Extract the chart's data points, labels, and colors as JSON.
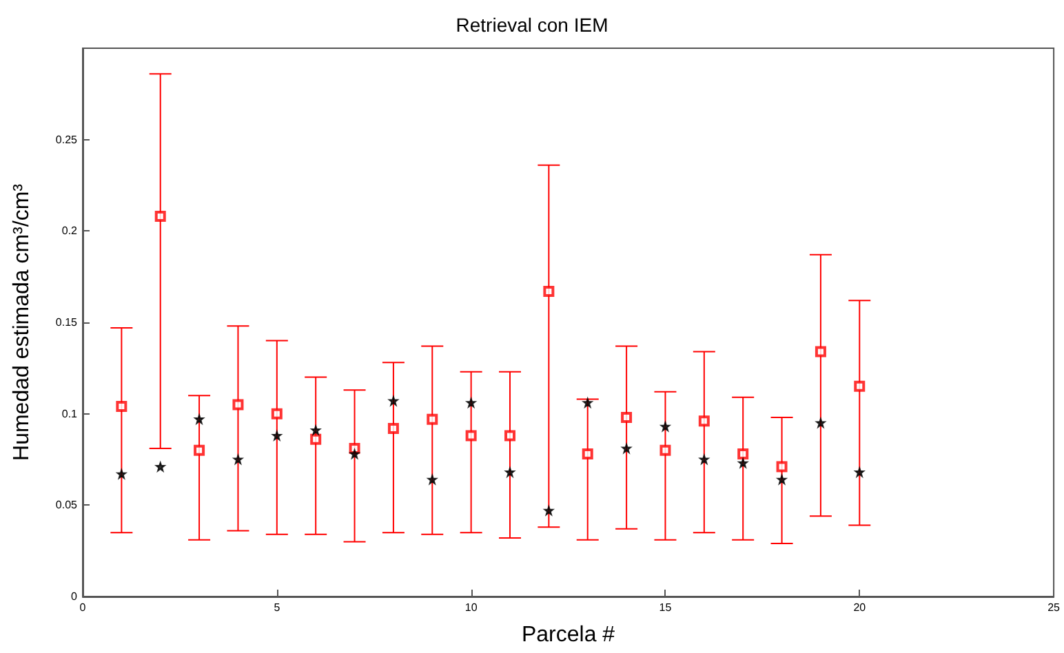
{
  "chart_data": {
    "type": "scatter",
    "title": "Retrieval con IEM",
    "xlabel": "Parcela #",
    "ylabel": "Humedad estimada cm³/cm³",
    "x": [
      1,
      2,
      3,
      4,
      5,
      6,
      7,
      8,
      9,
      10,
      11,
      12,
      13,
      14,
      15,
      16,
      17,
      18,
      19,
      20
    ],
    "series": [
      {
        "color": "#ff0000",
        "marker": "square",
        "values": [
          0.104,
          0.208,
          0.08,
          0.105,
          0.1,
          0.086,
          0.081,
          0.092,
          0.097,
          0.088,
          0.088,
          0.167,
          0.078,
          0.098,
          0.08,
          0.096,
          0.078,
          0.071,
          0.134,
          0.115
        ],
        "errors": [
          [
            0.035,
            0.147
          ],
          [
            0.081,
            0.286
          ],
          [
            0.031,
            0.11
          ],
          [
            0.036,
            0.148
          ],
          [
            0.034,
            0.14
          ],
          [
            0.034,
            0.12
          ],
          [
            0.03,
            0.113
          ],
          [
            0.035,
            0.128
          ],
          [
            0.034,
            0.137
          ],
          [
            0.035,
            0.123
          ],
          [
            0.032,
            0.123
          ],
          [
            0.038,
            0.236
          ],
          [
            0.031,
            0.108
          ],
          [
            0.037,
            0.137
          ],
          [
            0.031,
            0.112
          ],
          [
            0.035,
            0.134
          ],
          [
            0.031,
            0.109
          ],
          [
            0.029,
            0.098
          ],
          [
            0.044,
            0.187
          ],
          [
            0.039,
            0.162
          ]
        ]
      },
      {
        "color": "#000000",
        "marker": "star",
        "values": [
          0.067,
          0.071,
          0.097,
          0.075,
          0.088,
          0.091,
          0.078,
          0.107,
          0.064,
          0.106,
          0.068,
          0.047,
          0.106,
          0.081,
          0.093,
          0.075,
          0.073,
          0.064,
          0.095,
          0.068
        ]
      }
    ],
    "xlim": [
      0,
      25
    ],
    "xticks": [
      0,
      5,
      10,
      15,
      20,
      25
    ],
    "ylim": [
      0,
      0.3
    ],
    "yticks": [
      0,
      0.05,
      0.1,
      0.15,
      0.2,
      0.25
    ],
    "grid": false
  }
}
